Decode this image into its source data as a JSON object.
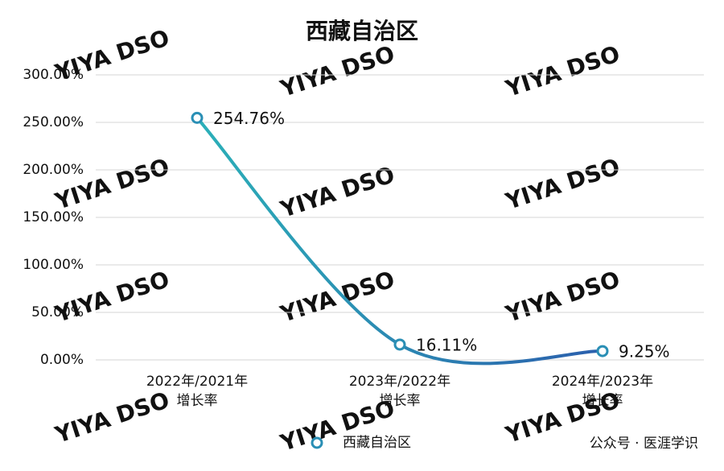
{
  "chart_data": {
    "type": "line",
    "title": "西藏自治区",
    "categories": [
      [
        "2022年/2021年",
        "增长率"
      ],
      [
        "2023年/2022年",
        "增长率"
      ],
      [
        "2024年/2023年",
        "增长率"
      ]
    ],
    "series": [
      {
        "name": "西藏自治区",
        "color": "#2a8fb5",
        "values": [
          254.76,
          16.11,
          9.25
        ],
        "value_labels": [
          "254.76%",
          "16.11%",
          "9.25%"
        ]
      }
    ],
    "ylim": [
      0,
      300
    ],
    "yticks": [
      {
        "value": 0,
        "label": "0.00%"
      },
      {
        "value": 50,
        "label": "50.00%"
      },
      {
        "value": 100,
        "label": "100.00%"
      },
      {
        "value": 150,
        "label": "150.00%"
      },
      {
        "value": 200,
        "label": "200.00%"
      },
      {
        "value": 250,
        "label": "250.00%"
      },
      {
        "value": 300,
        "label": "300.00%"
      }
    ],
    "grid": true,
    "smooth": true,
    "legend": "bottom",
    "watermark": "YIYA DSO",
    "footer": "公众号 · 医涯学识"
  }
}
